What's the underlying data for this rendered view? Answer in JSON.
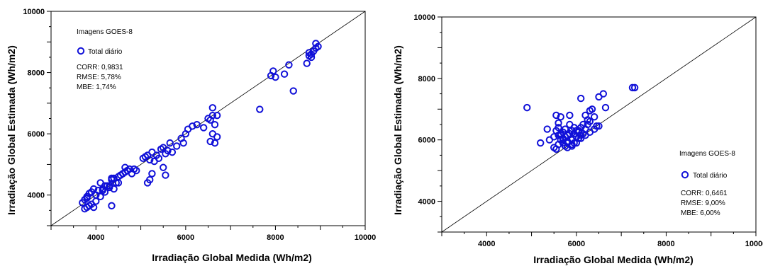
{
  "chart_data": [
    {
      "type": "scatter",
      "xlabel": "Irradiação Global Medida (Wh/m2)",
      "ylabel": "Irradiação Global Estimada (Wh/m2)",
      "xlim": [
        3000,
        10000
      ],
      "ylim": [
        3000,
        10000
      ],
      "x_ticks": [
        "4000",
        "6000",
        "8000",
        "10000"
      ],
      "y_ticks": [
        "4000",
        "6000",
        "8000",
        "10000"
      ],
      "reference_line": "y = x",
      "legend_title": "Imagens GOES-8",
      "series": [
        {
          "name": "Total diário",
          "color": "#1010d8",
          "marker": "open-circle",
          "x": [
            3750,
            3800,
            3850,
            3700,
            3900,
            3950,
            3800,
            4000,
            4100,
            3850,
            3900,
            4050,
            4150,
            4200,
            4250,
            4300,
            4100,
            4000,
            3750,
            3800,
            3950,
            4350,
            4400,
            4450,
            4500,
            4550,
            4600,
            4650,
            4700,
            4750,
            4800,
            4850,
            4900,
            4500,
            4300,
            4400,
            4200,
            4150,
            4350,
            4650,
            5050,
            5100,
            5150,
            5200,
            5250,
            5300,
            5350,
            5400,
            5450,
            5500,
            5550,
            5600,
            5650,
            5700,
            5800,
            5900,
            5950,
            6000,
            6050,
            5150,
            5200,
            5250,
            5500,
            5550,
            6150,
            6250,
            6400,
            6500,
            6550,
            6600,
            6650,
            6700,
            6550,
            6600,
            6650,
            6700,
            6600,
            7650,
            7900,
            7950,
            8000,
            8200,
            8300,
            8400,
            8700,
            8750,
            8800,
            8850,
            8900,
            8950,
            8800,
            8750,
            8900,
            4350
          ],
          "y": [
            3550,
            3600,
            3650,
            3750,
            3700,
            3600,
            3900,
            4000,
            3950,
            4050,
            4100,
            4150,
            4200,
            4100,
            4300,
            4250,
            4400,
            3800,
            3850,
            3950,
            4200,
            4500,
            4550,
            4400,
            4600,
            4650,
            4700,
            4750,
            4800,
            4850,
            4700,
            4850,
            4800,
            4400,
            4300,
            4200,
            4300,
            4150,
            4550,
            4900,
            5200,
            5250,
            5300,
            5150,
            5400,
            5100,
            5300,
            5200,
            5500,
            5550,
            5350,
            5450,
            5700,
            5400,
            5600,
            5850,
            5700,
            6000,
            6150,
            4400,
            4500,
            4700,
            4900,
            4650,
            6250,
            6300,
            6200,
            6500,
            6450,
            6600,
            6300,
            5900,
            5750,
            6000,
            5700,
            6600,
            6850,
            6800,
            7900,
            8050,
            7850,
            7950,
            8250,
            7400,
            8300,
            8550,
            8600,
            8700,
            8800,
            8850,
            8500,
            8650,
            8950,
            3650
          ]
        }
      ],
      "stats": [
        "CORR: 0,9831",
        "RMSE: 5,78%",
        "MBE: 1,74%"
      ]
    },
    {
      "type": "scatter",
      "xlabel": "Irradiação Global Medida (Wh/m2)",
      "ylabel": "Irradiação Global Estimada (Wh/m2)",
      "xlim": [
        3000,
        10000
      ],
      "ylim": [
        3000,
        10000
      ],
      "x_ticks": [
        "4000",
        "6000",
        "8000",
        "10000"
      ],
      "y_ticks": [
        "4000",
        "6000",
        "8000",
        "10000"
      ],
      "reference_line": "y = x",
      "legend_title": "Imagens GOES-8",
      "series": [
        {
          "name": "Total diário",
          "color": "#1010d8",
          "marker": "open-circle",
          "x": [
            4900,
            5200,
            5350,
            5400,
            5500,
            5550,
            5600,
            5650,
            5700,
            5750,
            5800,
            5850,
            5900,
            5950,
            6000,
            6050,
            6100,
            6150,
            6200,
            6250,
            6300,
            6350,
            6400,
            6500,
            6600,
            6650,
            7250,
            7300,
            6100,
            5550,
            5600,
            5650,
            5700,
            5750,
            5800,
            5850,
            5900,
            5950,
            6000,
            6050,
            6100,
            5500,
            5550,
            5600,
            5650,
            5700,
            5750,
            5800,
            5850,
            5900,
            5950,
            6000,
            6050,
            6150,
            6200,
            6250,
            6300,
            6450,
            5600,
            5700,
            5800,
            5900,
            6000,
            6100,
            6200,
            6300,
            6400,
            6500,
            5550,
            5650
          ],
          "y": [
            7050,
            5900,
            6350,
            6000,
            6100,
            5700,
            6400,
            6200,
            6050,
            5800,
            6150,
            6500,
            6300,
            5900,
            6100,
            6250,
            6400,
            6500,
            6800,
            6650,
            6950,
            7000,
            6750,
            7400,
            7500,
            7050,
            7700,
            7700,
            7350,
            6800,
            6550,
            6750,
            6000,
            6350,
            5900,
            6800,
            6000,
            6200,
            6300,
            6050,
            6150,
            5750,
            5700,
            5850,
            6000,
            5900,
            6100,
            5950,
            6200,
            5800,
            6400,
            6100,
            6300,
            6200,
            6350,
            6500,
            6600,
            6450,
            6150,
            6250,
            5750,
            5850,
            5900,
            6050,
            6150,
            6250,
            6350,
            6450,
            6300,
            6150
          ]
        }
      ],
      "stats": [
        "CORR: 0,6461",
        "RMSE: 9,00%",
        "MBE: 6,00%"
      ]
    }
  ]
}
